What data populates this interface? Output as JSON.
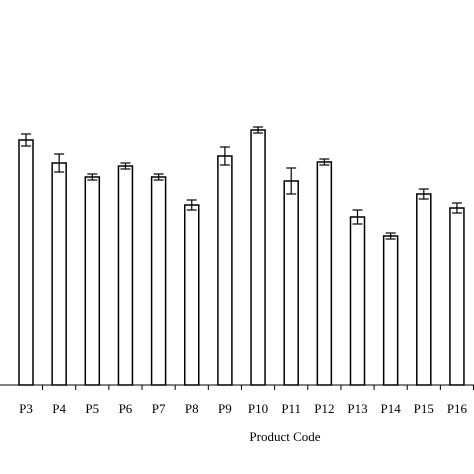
{
  "chart_data": {
    "type": "bar",
    "x_label": "Product Code",
    "categories": [
      "P3",
      "P4",
      "P5",
      "P6",
      "P7",
      "P8",
      "P9",
      "P10",
      "P11",
      "P12",
      "P13",
      "P14",
      "P15",
      "P16"
    ],
    "values": [
      245,
      222,
      208,
      219,
      208,
      180,
      229,
      255,
      204,
      223,
      168,
      149,
      191,
      177
    ],
    "errors": [
      6,
      9,
      3,
      3,
      3,
      5,
      9,
      3,
      13,
      3,
      7,
      3,
      5,
      5
    ],
    "color": "#ffffff",
    "ylim": [
      0,
      385
    ],
    "grid": false
  }
}
